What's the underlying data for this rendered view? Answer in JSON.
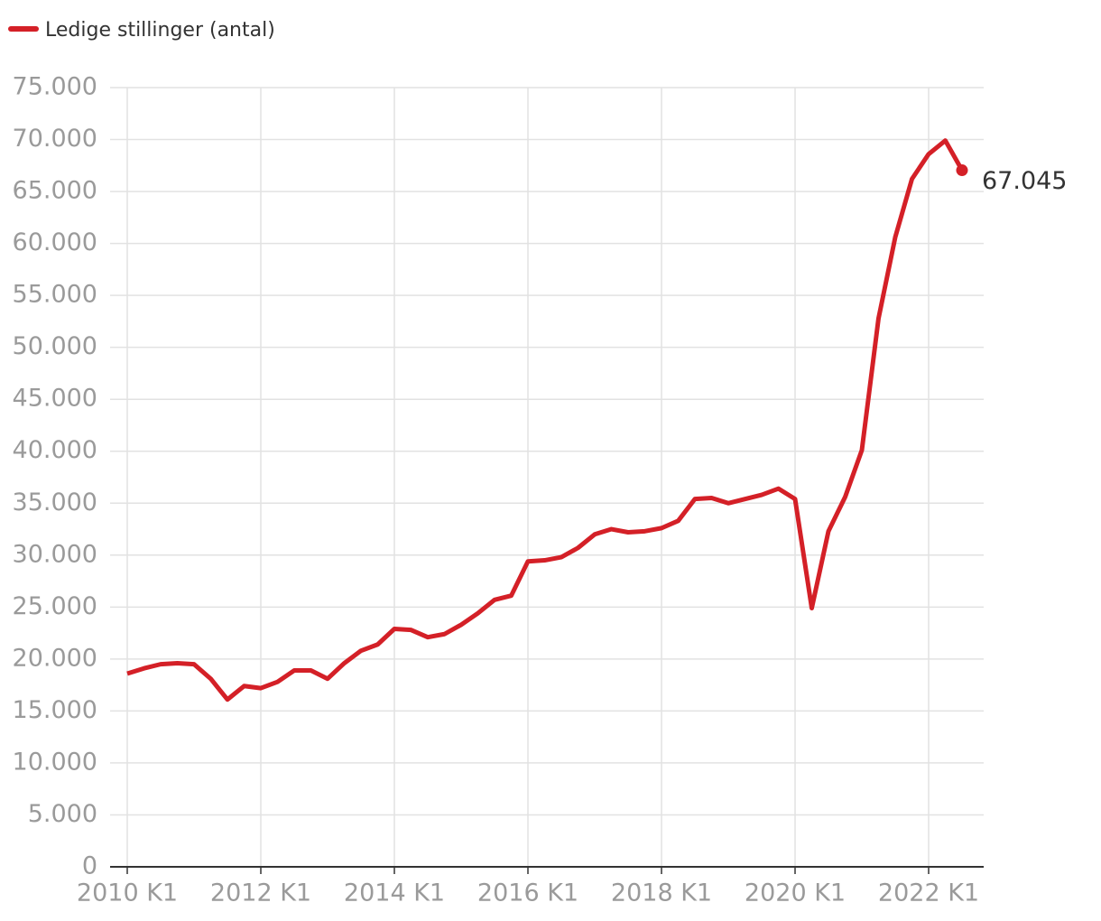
{
  "chart_data": {
    "type": "line",
    "categories": [
      "2010 K1",
      null,
      null,
      null,
      null,
      null,
      null,
      null,
      "2012 K1",
      null,
      null,
      null,
      null,
      null,
      null,
      null,
      "2014 K1",
      null,
      null,
      null,
      null,
      null,
      null,
      null,
      "2016 K1",
      null,
      null,
      null,
      null,
      null,
      null,
      null,
      "2018 K1",
      null,
      null,
      null,
      null,
      null,
      null,
      null,
      "2020 K1",
      null,
      null,
      null,
      null,
      null,
      null,
      null,
      "2022 K1",
      null,
      null
    ],
    "series": [
      {
        "name": "Ledige stillinger (antal)",
        "color": "#d42027",
        "values": [
          18600,
          19100,
          19500,
          19600,
          19500,
          18100,
          16100,
          17400,
          17200,
          17800,
          18900,
          18900,
          18100,
          19600,
          20800,
          21400,
          22900,
          22800,
          22100,
          22400,
          23300,
          24400,
          25700,
          26100,
          29400,
          29500,
          29800,
          30700,
          32000,
          32500,
          32200,
          32300,
          32600,
          33300,
          35400,
          35500,
          35000,
          35400,
          35800,
          36400,
          35400,
          24900,
          32300,
          35600,
          40100,
          52800,
          60600,
          66200,
          68600,
          69900,
          67045
        ],
        "value_labels": [
          null,
          null,
          null,
          null,
          null,
          null,
          null,
          null,
          null,
          null,
          null,
          null,
          null,
          null,
          null,
          null,
          null,
          null,
          null,
          null,
          null,
          null,
          null,
          null,
          null,
          null,
          null,
          null,
          null,
          null,
          null,
          null,
          null,
          null,
          null,
          null,
          null,
          null,
          null,
          null,
          null,
          null,
          null,
          null,
          null,
          null,
          null,
          null,
          null,
          null,
          "67.045"
        ]
      }
    ],
    "ylim": [
      0,
      75000
    ],
    "yticks": [
      0,
      {
        "value": 5000,
        "label": "5.000"
      },
      {
        "value": 10000,
        "label": "10.000"
      },
      {
        "value": 15000,
        "label": "15.000"
      },
      {
        "value": 20000,
        "label": "20.000"
      },
      {
        "value": 25000,
        "label": "25.000"
      },
      {
        "value": 30000,
        "label": "30.000"
      },
      {
        "value": 35000,
        "label": "35.000"
      },
      {
        "value": 40000,
        "label": "40.000"
      },
      {
        "value": 45000,
        "label": "45.000"
      },
      {
        "value": 50000,
        "label": "50.000"
      },
      {
        "value": 55000,
        "label": "55.000"
      },
      {
        "value": 60000,
        "label": "60.000"
      },
      {
        "value": 65000,
        "label": "65.000"
      },
      {
        "value": 70000,
        "label": "70.000"
      },
      {
        "value": 75000,
        "label": "75.000"
      }
    ],
    "grid": true,
    "legend": "top-left"
  }
}
